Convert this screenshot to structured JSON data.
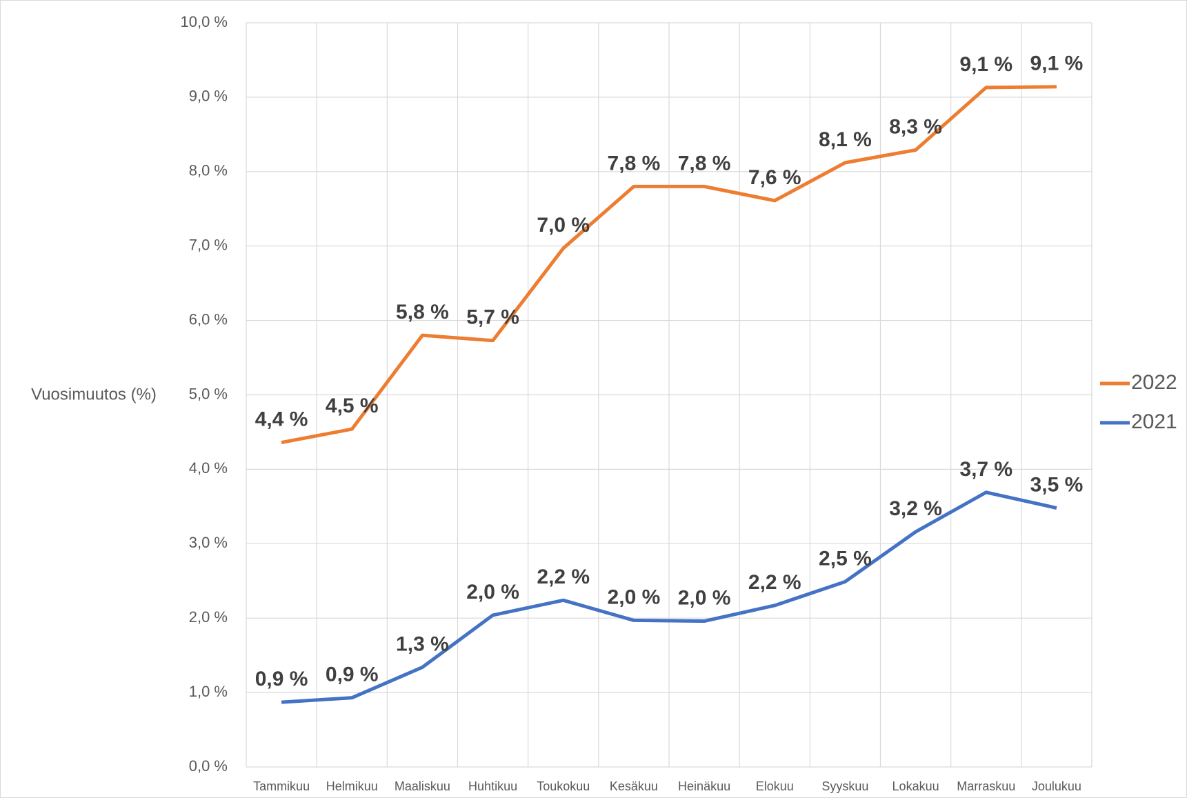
{
  "chart_data": {
    "type": "line",
    "y_label": "Vuosimuutos (%)",
    "categories": [
      "Tammikuu",
      "Helmikuu",
      "Maaliskuu",
      "Huhtikuu",
      "Toukokuu",
      "Kesäkuu",
      "Heinäkuu",
      "Elokuu",
      "Syyskuu",
      "Lokakuu",
      "Marraskuu",
      "Joulukuu"
    ],
    "series": [
      {
        "name": "2022",
        "color": "#ed7d31",
        "values": [
          4.36,
          4.54,
          5.8,
          5.73,
          6.97,
          7.8,
          7.8,
          7.61,
          8.12,
          8.29,
          9.13,
          9.14
        ],
        "value_labels": [
          "4,4 %",
          "4,5 %",
          "5,8 %",
          "5,7 %",
          "7,0 %",
          "7,8 %",
          "7,8 %",
          "7,6 %",
          "8,1 %",
          "8,3 %",
          "9,1 %",
          "9,1 %"
        ]
      },
      {
        "name": "2021",
        "color": "#4472c4",
        "values": [
          0.87,
          0.93,
          1.34,
          2.04,
          2.24,
          1.97,
          1.96,
          2.17,
          2.49,
          3.16,
          3.69,
          3.48
        ],
        "value_labels": [
          "0,9 %",
          "0,9 %",
          "1,3 %",
          "2,0 %",
          "2,2 %",
          "2,0 %",
          "2,0 %",
          "2,2 %",
          "2,5 %",
          "3,2 %",
          "3,7 %",
          "3,5 %"
        ]
      }
    ],
    "ylim": [
      0,
      10
    ],
    "yticks": [
      {
        "value": 0,
        "label": "0,0 %"
      },
      {
        "value": 1,
        "label": "1,0 %"
      },
      {
        "value": 2,
        "label": "2,0 %"
      },
      {
        "value": 3,
        "label": "3,0 %"
      },
      {
        "value": 4,
        "label": "4,0 %"
      },
      {
        "value": 5,
        "label": "5,0 %"
      },
      {
        "value": 6,
        "label": "6,0 %"
      },
      {
        "value": 7,
        "label": "7,0 %"
      },
      {
        "value": 8,
        "label": "8,0 %"
      },
      {
        "value": 9,
        "label": "9,0 %"
      },
      {
        "value": 10,
        "label": "10,0 %"
      }
    ],
    "grid": true,
    "legend": "right"
  }
}
